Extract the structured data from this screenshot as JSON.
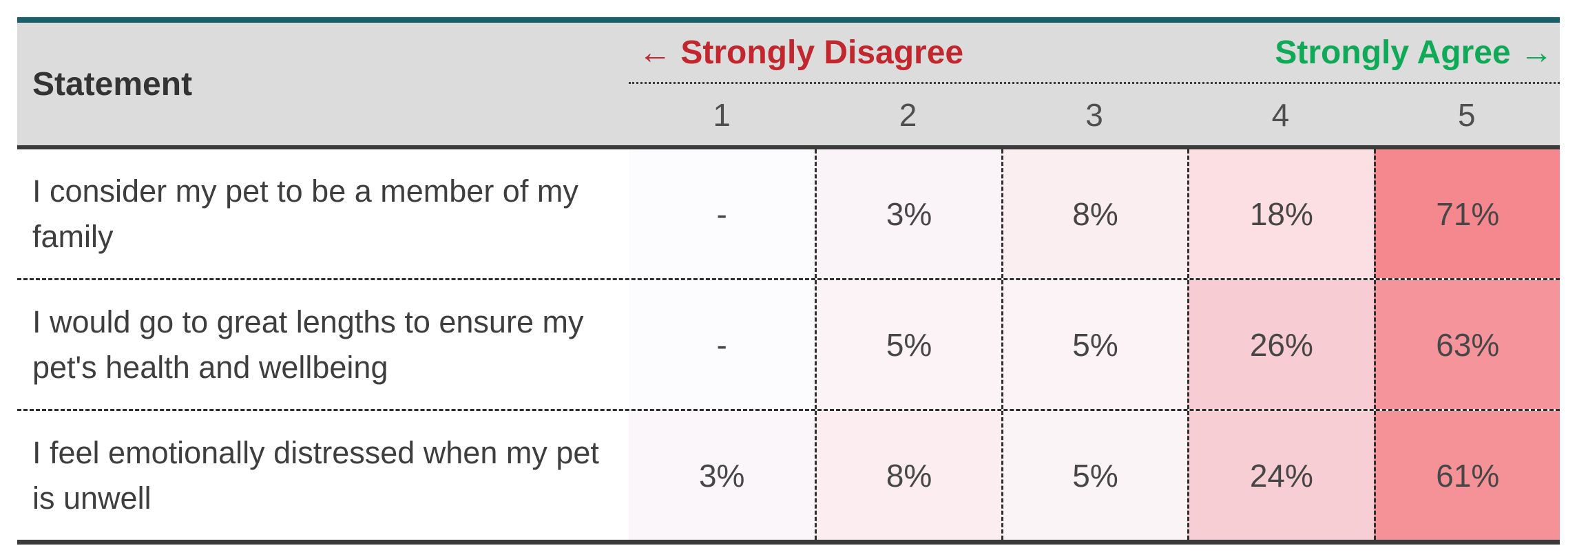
{
  "table": {
    "accent_bar_color": "#16606b",
    "header": {
      "bg": "#dcdcdc",
      "statement_label": "Statement",
      "disagree_label": "← Strongly Disagree",
      "disagree_color": "#c1272d",
      "agree_label": "Strongly Agree →",
      "agree_color": "#0fa958",
      "points": [
        "1",
        "2",
        "3",
        "4",
        "5"
      ]
    },
    "rows": [
      {
        "statement": "I consider my pet to be a member of my family",
        "values": [
          "-",
          "3%",
          "8%",
          "18%",
          "71%"
        ],
        "cell_colors": [
          "#fcfbfe",
          "#faf4f8",
          "#fbeef1",
          "#fbdfe3",
          "#f4888e"
        ]
      },
      {
        "statement": "I would go to great lengths to ensure my pet's health and wellbeing",
        "values": [
          "-",
          "5%",
          "5%",
          "26%",
          "63%"
        ],
        "cell_colors": [
          "#fcfbfe",
          "#fbf3f5",
          "#fbf3f6",
          "#f8ccd3",
          "#f5949a"
        ]
      },
      {
        "statement": "I feel emotionally distressed when my pet is unwell",
        "values": [
          "3%",
          "8%",
          "5%",
          "24%",
          "61%"
        ],
        "cell_colors": [
          "#faf6fa",
          "#fbedf0",
          "#fbf4f6",
          "#f8ced5",
          "#f59298"
        ]
      }
    ]
  },
  "chart_data": {
    "type": "heatmap",
    "title": "",
    "categories": [
      "1",
      "2",
      "3",
      "4",
      "5"
    ],
    "scale_low_label": "Strongly Disagree",
    "scale_high_label": "Strongly Agree",
    "legend_position": "header",
    "rows": [
      {
        "statement": "I consider my pet to be a member of my family",
        "values_pct": [
          null,
          3,
          8,
          18,
          71
        ]
      },
      {
        "statement": "I would go to great lengths to ensure my pet's health and wellbeing",
        "values_pct": [
          null,
          5,
          5,
          26,
          63
        ]
      },
      {
        "statement": "I feel emotionally distressed when my pet is unwell",
        "values_pct": [
          3,
          8,
          5,
          24,
          61
        ]
      }
    ]
  }
}
